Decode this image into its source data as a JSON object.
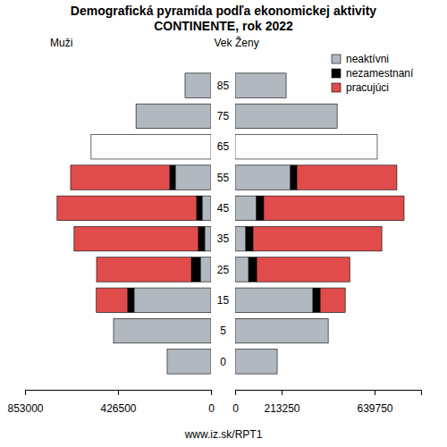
{
  "chart_data": [
    {
      "type": "bar",
      "orientation": "horizontal",
      "stacked": true,
      "title": "Demografická pyramída podľa ekonomickej aktivity",
      "subtitle": "CONTINENTE, rok 2022",
      "label": "Muži",
      "ylabel": "Vek",
      "caption": "www.iz.sk/RPT1",
      "categories": [
        "0",
        "5",
        "15",
        "25",
        "35",
        "45",
        "55",
        "65",
        "75",
        "85"
      ],
      "xlim": [
        853000,
        0
      ],
      "xticks": [
        853000,
        426500,
        0
      ],
      "series": [
        {
          "name": "neaktívni",
          "color": "#b2b8bf",
          "colors": [
            "#b2b8bf",
            "#b2b8bf",
            "#b2b8bf",
            "#b2b8bf",
            "#b2b8bf",
            "#b2b8bf",
            "#b2b8bf",
            "#ffffff",
            "#b2b8bf",
            "#b2b8bf"
          ],
          "values": [
            201000,
            447000,
            353000,
            49000,
            29000,
            41000,
            164000,
            550000,
            344000,
            119000
          ]
        },
        {
          "name": "nezamestnaní",
          "color": "#000000",
          "values": [
            null,
            null,
            29000,
            41000,
            29000,
            25000,
            25000,
            null,
            null,
            null
          ]
        },
        {
          "name": "pracujúci",
          "color": "#e04c4c",
          "values": [
            null,
            null,
            144000,
            435000,
            570000,
            640000,
            455000,
            null,
            null,
            null
          ]
        }
      ]
    },
    {
      "type": "bar",
      "orientation": "horizontal",
      "stacked": true,
      "label": "Ženy",
      "legend": "top right",
      "categories": [
        "0",
        "5",
        "15",
        "25",
        "35",
        "45",
        "55",
        "65",
        "75",
        "85"
      ],
      "xlim": [
        0,
        853000
      ],
      "xticks": [
        0,
        213250,
        639750
      ],
      "series": [
        {
          "name": "neaktívni",
          "color": "#b2b8bf",
          "colors": [
            "#b2b8bf",
            "#b2b8bf",
            "#b2b8bf",
            "#b2b8bf",
            "#b2b8bf",
            "#b2b8bf",
            "#b2b8bf",
            "#ffffff",
            "#b2b8bf",
            "#b2b8bf"
          ],
          "values": [
            193000,
            427000,
            357000,
            62000,
            49000,
            98000,
            254000,
            652000,
            468000,
            234000
          ]
        },
        {
          "name": "nezamestnaní",
          "color": "#000000",
          "values": [
            null,
            null,
            33000,
            37000,
            33000,
            33000,
            29000,
            null,
            null,
            null
          ]
        },
        {
          "name": "pracujúci",
          "color": "#e04c4c",
          "values": [
            null,
            null,
            115000,
            427000,
            591000,
            644000,
            459000,
            null,
            null,
            null
          ]
        }
      ]
    }
  ]
}
